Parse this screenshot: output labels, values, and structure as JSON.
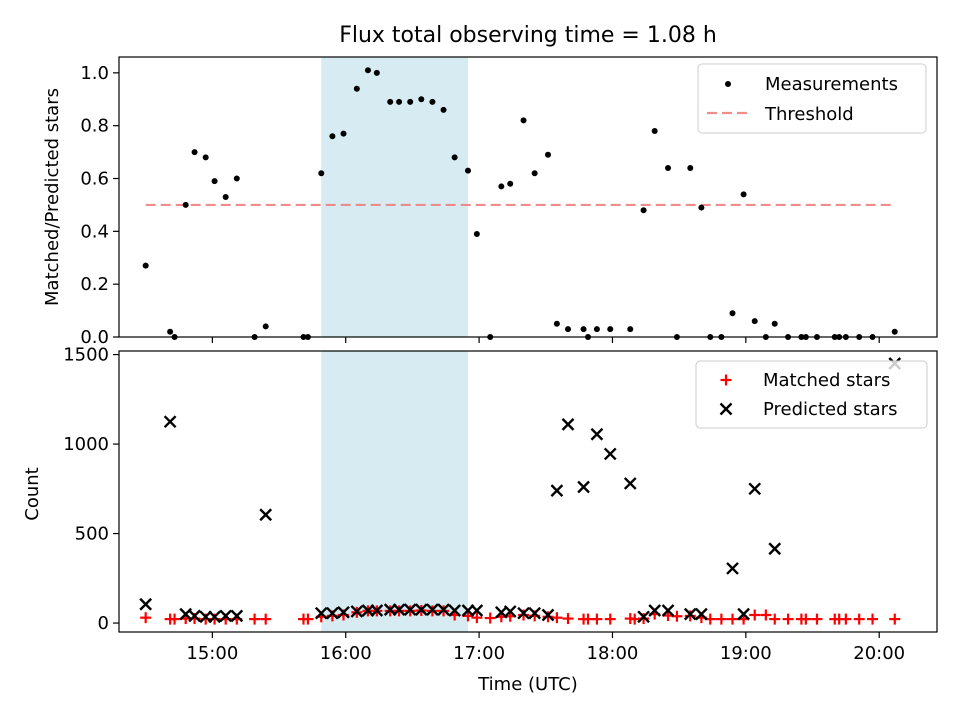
{
  "chart_data": [
    {
      "type": "scatter",
      "title": "Flux total observing time = 1.08 h",
      "xlabel": "",
      "ylabel": "Matched/Predicted stars",
      "ylim": [
        0,
        1.06
      ],
      "yticks": [
        "0.0",
        "0.2",
        "0.4",
        "0.6",
        "0.8",
        "1.0"
      ],
      "xticks": [
        "15:00",
        "16:00",
        "17:00",
        "18:00",
        "19:00",
        "20:00"
      ],
      "xlim": [
        "14:18",
        "20:26"
      ],
      "shaded_span": [
        "15:49",
        "16:55"
      ],
      "shade_color": "#add8e6",
      "threshold": {
        "value": 0.5,
        "x_start": "14:30",
        "x_end": "20:07",
        "color": "#f08080"
      },
      "legend": {
        "position": "top-right",
        "entries": [
          "Measurements",
          "Threshold"
        ]
      },
      "series": [
        {
          "name": "Measurements",
          "points": [
            [
              "14:30",
              0.27
            ],
            [
              "14:41",
              0.02
            ],
            [
              "14:43",
              0.0
            ],
            [
              "14:48",
              0.5
            ],
            [
              "14:52",
              0.7
            ],
            [
              "14:57",
              0.68
            ],
            [
              "15:01",
              0.59
            ],
            [
              "15:06",
              0.53
            ],
            [
              "15:11",
              0.6
            ],
            [
              "15:19",
              0.0
            ],
            [
              "15:24",
              0.04
            ],
            [
              "15:41",
              0.0
            ],
            [
              "15:43",
              0.0
            ],
            [
              "15:49",
              0.62
            ],
            [
              "15:54",
              0.76
            ],
            [
              "15:59",
              0.77
            ],
            [
              "16:05",
              0.94
            ],
            [
              "16:10",
              1.01
            ],
            [
              "16:14",
              1.0
            ],
            [
              "16:20",
              0.89
            ],
            [
              "16:24",
              0.89
            ],
            [
              "16:29",
              0.89
            ],
            [
              "16:34",
              0.9
            ],
            [
              "16:39",
              0.89
            ],
            [
              "16:44",
              0.86
            ],
            [
              "16:49",
              0.68
            ],
            [
              "16:55",
              0.63
            ],
            [
              "16:59",
              0.39
            ],
            [
              "17:05",
              0.0
            ],
            [
              "17:10",
              0.57
            ],
            [
              "17:14",
              0.58
            ],
            [
              "17:20",
              0.82
            ],
            [
              "17:25",
              0.62
            ],
            [
              "17:31",
              0.69
            ],
            [
              "17:35",
              0.05
            ],
            [
              "17:40",
              0.03
            ],
            [
              "17:47",
              0.03
            ],
            [
              "17:49",
              0.0
            ],
            [
              "17:53",
              0.03
            ],
            [
              "17:59",
              0.03
            ],
            [
              "18:08",
              0.03
            ],
            [
              "18:14",
              0.48
            ],
            [
              "18:19",
              0.78
            ],
            [
              "18:25",
              0.64
            ],
            [
              "18:29",
              0.0
            ],
            [
              "18:35",
              0.64
            ],
            [
              "18:40",
              0.49
            ],
            [
              "18:44",
              0.0
            ],
            [
              "18:49",
              0.0
            ],
            [
              "18:54",
              0.09
            ],
            [
              "18:59",
              0.54
            ],
            [
              "19:04",
              0.06
            ],
            [
              "19:09",
              0.0
            ],
            [
              "19:13",
              0.05
            ],
            [
              "19:19",
              0.0
            ],
            [
              "19:25",
              0.0
            ],
            [
              "19:27",
              0.0
            ],
            [
              "19:32",
              0.0
            ],
            [
              "19:40",
              0.0
            ],
            [
              "19:42",
              0.0
            ],
            [
              "19:45",
              0.0
            ],
            [
              "19:51",
              0.0
            ],
            [
              "19:57",
              0.0
            ],
            [
              "20:07",
              0.02
            ]
          ]
        }
      ]
    },
    {
      "type": "scatter",
      "title": "",
      "xlabel": "Time (UTC)",
      "ylabel": "Count",
      "ylim": [
        -50,
        1520
      ],
      "yticks": [
        "0",
        "500",
        "1000",
        "1500"
      ],
      "xticks": [
        "15:00",
        "16:00",
        "17:00",
        "18:00",
        "19:00",
        "20:00"
      ],
      "xlim": [
        "14:18",
        "20:26"
      ],
      "shaded_span": [
        "15:49",
        "16:55"
      ],
      "shade_color": "#add8e6",
      "legend": {
        "position": "top-right",
        "entries": [
          "Matched stars",
          "Predicted stars"
        ]
      },
      "series": [
        {
          "name": "Matched stars",
          "color": "#ff0000",
          "marker": "plus",
          "points": [
            [
              "14:30",
              30
            ],
            [
              "14:41",
              22
            ],
            [
              "14:43",
              22
            ],
            [
              "14:48",
              25
            ],
            [
              "14:52",
              25
            ],
            [
              "14:57",
              22
            ],
            [
              "15:01",
              22
            ],
            [
              "15:06",
              22
            ],
            [
              "15:11",
              22
            ],
            [
              "15:19",
              22
            ],
            [
              "15:24",
              22
            ],
            [
              "15:41",
              22
            ],
            [
              "15:43",
              22
            ],
            [
              "15:49",
              35
            ],
            [
              "15:54",
              40
            ],
            [
              "15:59",
              45
            ],
            [
              "16:05",
              60
            ],
            [
              "16:10",
              68
            ],
            [
              "16:14",
              68
            ],
            [
              "16:20",
              68
            ],
            [
              "16:24",
              68
            ],
            [
              "16:29",
              68
            ],
            [
              "16:34",
              70
            ],
            [
              "16:39",
              68
            ],
            [
              "16:44",
              68
            ],
            [
              "16:49",
              45
            ],
            [
              "16:55",
              40
            ],
            [
              "16:59",
              30
            ],
            [
              "17:05",
              28
            ],
            [
              "17:10",
              35
            ],
            [
              "17:14",
              38
            ],
            [
              "17:20",
              45
            ],
            [
              "17:25",
              40
            ],
            [
              "17:31",
              35
            ],
            [
              "17:35",
              30
            ],
            [
              "17:40",
              25
            ],
            [
              "17:47",
              22
            ],
            [
              "17:49",
              22
            ],
            [
              "17:53",
              22
            ],
            [
              "17:59",
              22
            ],
            [
              "18:08",
              25
            ],
            [
              "18:10",
              22
            ],
            [
              "18:14",
              25
            ],
            [
              "18:19",
              50
            ],
            [
              "18:25",
              42
            ],
            [
              "18:29",
              38
            ],
            [
              "18:35",
              40
            ],
            [
              "18:40",
              30
            ],
            [
              "18:44",
              22
            ],
            [
              "18:49",
              22
            ],
            [
              "18:54",
              22
            ],
            [
              "18:59",
              22
            ],
            [
              "19:04",
              45
            ],
            [
              "19:09",
              45
            ],
            [
              "19:13",
              22
            ],
            [
              "19:19",
              22
            ],
            [
              "19:25",
              22
            ],
            [
              "19:27",
              22
            ],
            [
              "19:32",
              22
            ],
            [
              "19:40",
              22
            ],
            [
              "19:42",
              22
            ],
            [
              "19:45",
              22
            ],
            [
              "19:51",
              22
            ],
            [
              "19:57",
              22
            ],
            [
              "20:07",
              22
            ]
          ]
        },
        {
          "name": "Predicted stars",
          "color": "#000000",
          "marker": "x",
          "points": [
            [
              "14:30",
              105
            ],
            [
              "14:41",
              1125
            ],
            [
              "14:48",
              50
            ],
            [
              "14:52",
              40
            ],
            [
              "14:57",
              35
            ],
            [
              "15:01",
              35
            ],
            [
              "15:06",
              40
            ],
            [
              "15:11",
              40
            ],
            [
              "15:24",
              605
            ],
            [
              "15:49",
              55
            ],
            [
              "15:54",
              55
            ],
            [
              "15:59",
              60
            ],
            [
              "16:05",
              65
            ],
            [
              "16:10",
              70
            ],
            [
              "16:14",
              70
            ],
            [
              "16:20",
              75
            ],
            [
              "16:24",
              75
            ],
            [
              "16:29",
              75
            ],
            [
              "16:34",
              75
            ],
            [
              "16:39",
              75
            ],
            [
              "16:44",
              75
            ],
            [
              "16:49",
              70
            ],
            [
              "16:55",
              70
            ],
            [
              "16:59",
              70
            ],
            [
              "17:10",
              60
            ],
            [
              "17:14",
              65
            ],
            [
              "17:20",
              55
            ],
            [
              "17:25",
              55
            ],
            [
              "17:31",
              45
            ],
            [
              "17:35",
              740
            ],
            [
              "17:40",
              1110
            ],
            [
              "17:47",
              760
            ],
            [
              "17:53",
              1055
            ],
            [
              "17:59",
              945
            ],
            [
              "18:08",
              780
            ],
            [
              "18:14",
              35
            ],
            [
              "18:19",
              70
            ],
            [
              "18:25",
              70
            ],
            [
              "18:35",
              50
            ],
            [
              "18:40",
              50
            ],
            [
              "18:54",
              305
            ],
            [
              "18:59",
              50
            ],
            [
              "19:04",
              750
            ],
            [
              "19:13",
              415
            ],
            [
              "20:07",
              1450
            ]
          ]
        }
      ]
    }
  ]
}
